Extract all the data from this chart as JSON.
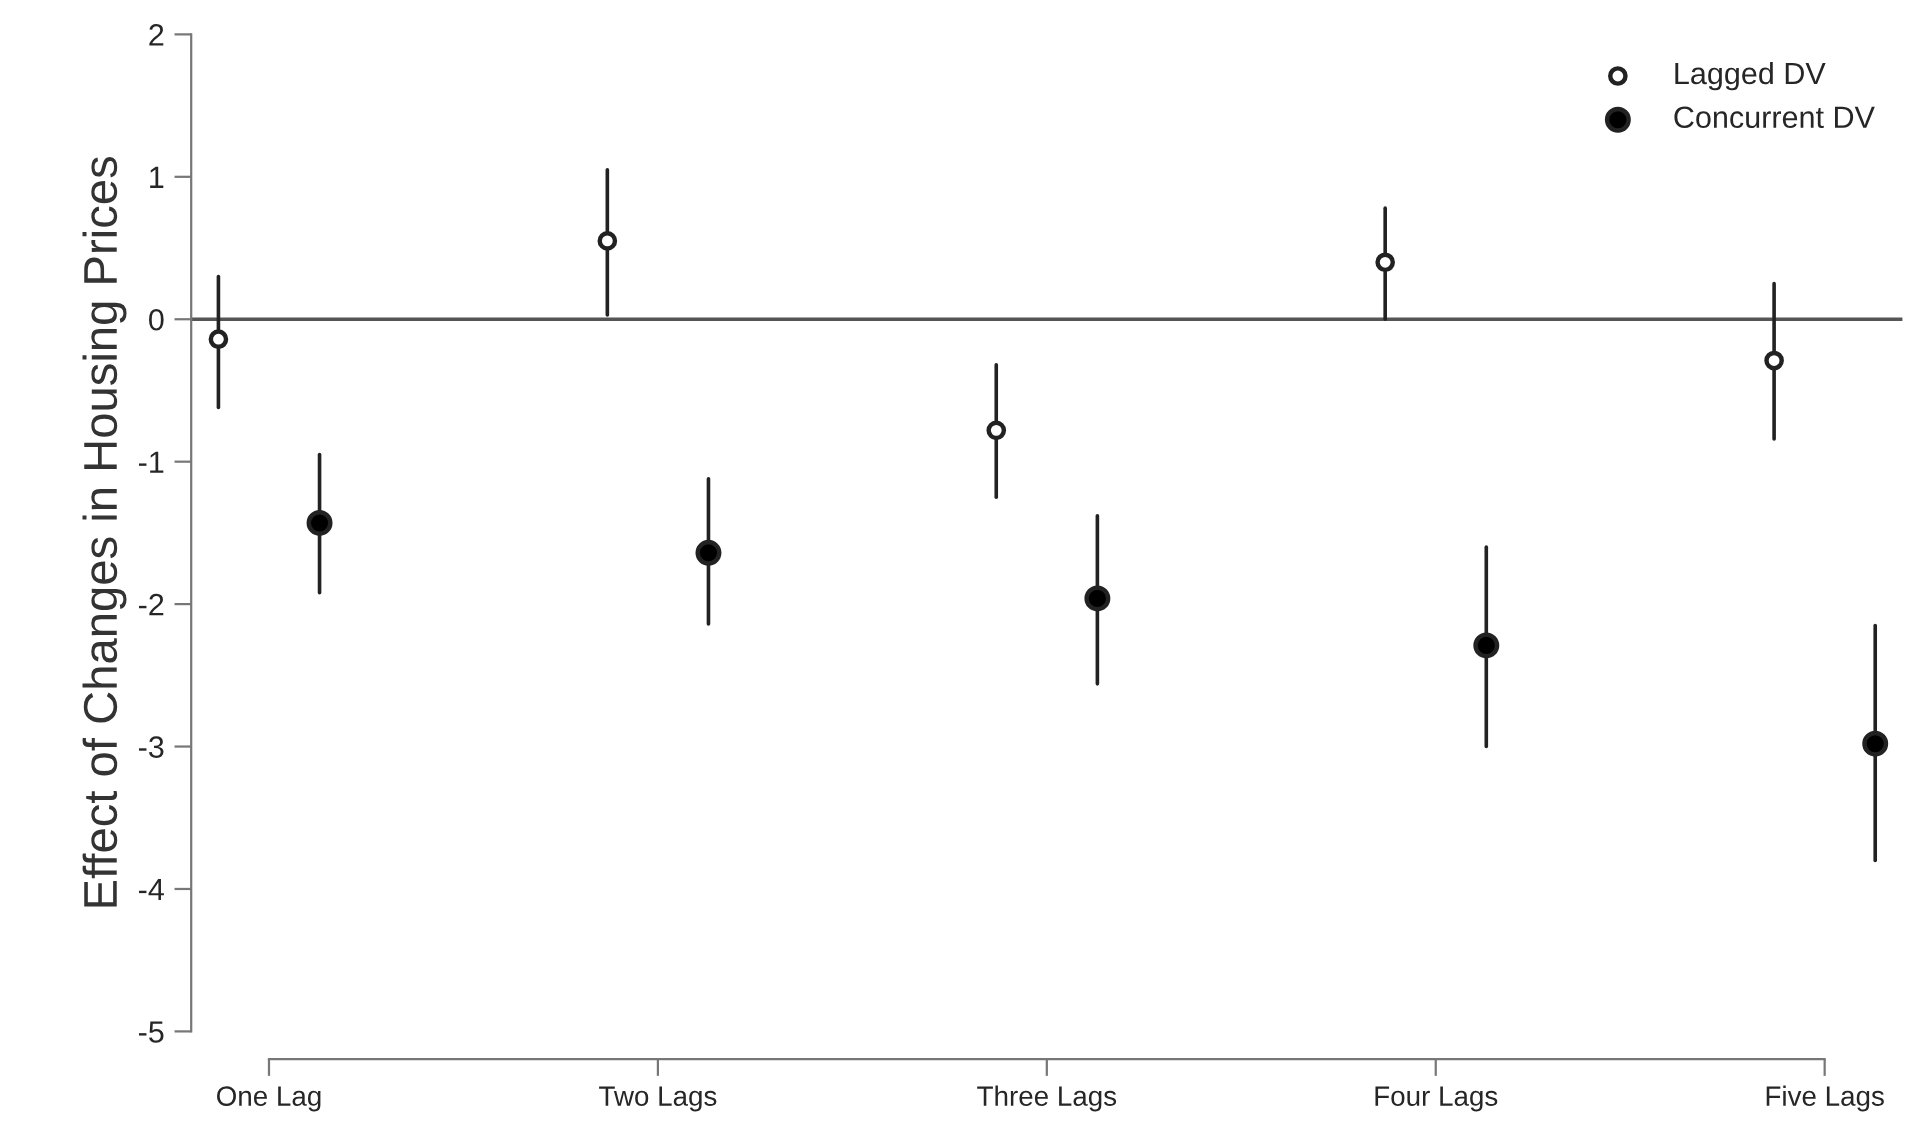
{
  "chart_data": {
    "type": "scatter",
    "ylabel": "Effect of Changes in Housing Prices",
    "categories": [
      "One Lag",
      "Two Lags",
      "Three Lags",
      "Four Lags",
      "Five Lags"
    ],
    "series": [
      {
        "name": "Lagged DV",
        "color": "#ffffff",
        "values": [
          -0.14,
          0.55,
          -0.78,
          0.4,
          -0.29
        ],
        "errors": [
          [
            -0.62,
            0.3
          ],
          [
            0.03,
            1.05
          ],
          [
            -1.25,
            -0.32
          ],
          [
            0.0,
            0.78
          ],
          [
            -0.84,
            0.25
          ]
        ]
      },
      {
        "name": "Concurrent DV",
        "color": "#000000",
        "values": [
          -1.43,
          -1.64,
          -1.96,
          -2.29,
          -2.98
        ],
        "errors": [
          [
            -1.92,
            -0.95
          ],
          [
            -2.14,
            -1.12
          ],
          [
            -2.56,
            -1.38
          ],
          [
            -3.0,
            -1.6
          ],
          [
            -3.8,
            -2.15
          ]
        ]
      }
    ],
    "ylim": [
      -5,
      2
    ],
    "yticks": [
      -5,
      -4,
      -3,
      -2,
      -1,
      0,
      1,
      2
    ],
    "ref_lines": [
      {
        "axis": "y",
        "value": 0,
        "color": "#555555"
      }
    ],
    "marker": "circle",
    "grid": false,
    "legend": "top right"
  }
}
